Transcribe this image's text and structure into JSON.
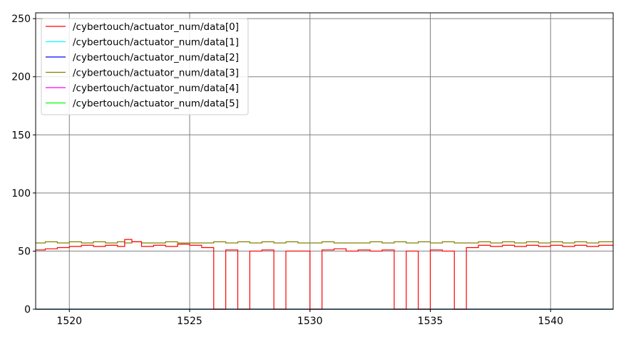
{
  "chart_data": {
    "type": "line",
    "xlim": [
      1518.6,
      1542.6
    ],
    "ylim": [
      0,
      255
    ],
    "xticks": [
      1520,
      1525,
      1530,
      1535,
      1540
    ],
    "yticks": [
      0,
      50,
      100,
      150,
      200,
      250
    ],
    "grid": true,
    "legend_position": "top-left",
    "x": [
      1518.6,
      1519.0,
      1519.5,
      1520.0,
      1520.5,
      1521.0,
      1521.5,
      1522.0,
      1522.3,
      1522.6,
      1523.0,
      1523.5,
      1524.0,
      1524.5,
      1525.0,
      1525.5,
      1526.0,
      1526.5,
      1527.0,
      1527.5,
      1528.0,
      1528.5,
      1529.0,
      1529.5,
      1530.0,
      1530.5,
      1531.0,
      1531.5,
      1532.0,
      1532.5,
      1533.0,
      1533.5,
      1534.0,
      1534.5,
      1535.0,
      1535.5,
      1536.0,
      1536.5,
      1537.0,
      1537.5,
      1538.0,
      1538.5,
      1539.0,
      1539.5,
      1540.0,
      1540.5,
      1541.0,
      1541.5,
      1542.0,
      1542.6
    ],
    "series": [
      {
        "name": "/cybertouch/actuator_num/data[0]",
        "color": "#ff0000",
        "values": [
          51,
          52,
          53,
          54,
          55,
          54,
          55,
          54,
          60,
          58,
          54,
          55,
          54,
          56,
          55,
          53,
          0,
          51,
          0,
          50,
          51,
          0,
          50,
          50,
          0,
          51,
          52,
          50,
          51,
          50,
          51,
          0,
          50,
          0,
          51,
          50,
          0,
          53,
          55,
          54,
          55,
          54,
          55,
          54,
          55,
          54,
          55,
          54,
          55,
          54
        ]
      },
      {
        "name": "/cybertouch/actuator_num/data[1]",
        "color": "#00ffff",
        "values": [
          0,
          0,
          0,
          0,
          0,
          0,
          0,
          0,
          0,
          0,
          0,
          0,
          0,
          0,
          0,
          0,
          0,
          0,
          0,
          0,
          0,
          0,
          0,
          0,
          0,
          0,
          0,
          0,
          0,
          0,
          0,
          0,
          0,
          0,
          0,
          0,
          0,
          0,
          0,
          0,
          0,
          0,
          0,
          0,
          0,
          0,
          0,
          0,
          0,
          0
        ]
      },
      {
        "name": "/cybertouch/actuator_num/data[2]",
        "color": "#0000ff",
        "values": [
          0,
          0,
          0,
          0,
          0,
          0,
          0,
          0,
          0,
          0,
          0,
          0,
          0,
          0,
          0,
          0,
          0,
          0,
          0,
          0,
          0,
          0,
          0,
          0,
          0,
          0,
          0,
          0,
          0,
          0,
          0,
          0,
          0,
          0,
          0,
          0,
          0,
          0,
          0,
          0,
          0,
          0,
          0,
          0,
          0,
          0,
          0,
          0,
          0,
          0
        ]
      },
      {
        "name": "/cybertouch/actuator_num/data[3]",
        "color": "#808000",
        "values": [
          57,
          58,
          57,
          58,
          57,
          58,
          57,
          58,
          57,
          58,
          57,
          57,
          58,
          57,
          57,
          57,
          58,
          57,
          58,
          57,
          58,
          57,
          58,
          57,
          57,
          58,
          57,
          57,
          57,
          58,
          57,
          58,
          57,
          58,
          57,
          58,
          57,
          57,
          58,
          57,
          58,
          57,
          58,
          57,
          58,
          57,
          58,
          57,
          58,
          58
        ]
      },
      {
        "name": "/cybertouch/actuator_num/data[4]",
        "color": "#ff00ff",
        "values": [
          0,
          0,
          0,
          0,
          0,
          0,
          0,
          0,
          0,
          0,
          0,
          0,
          0,
          0,
          0,
          0,
          0,
          0,
          0,
          0,
          0,
          0,
          0,
          0,
          0,
          0,
          0,
          0,
          0,
          0,
          0,
          0,
          0,
          0,
          0,
          0,
          0,
          0,
          0,
          0,
          0,
          0,
          0,
          0,
          0,
          0,
          0,
          0,
          0,
          0
        ]
      },
      {
        "name": "/cybertouch/actuator_num/data[5]",
        "color": "#00ff00",
        "values": [
          0,
          0,
          0,
          0,
          0,
          0,
          0,
          0,
          0,
          0,
          0,
          0,
          0,
          0,
          0,
          0,
          0,
          0,
          0,
          0,
          0,
          0,
          0,
          0,
          0,
          0,
          0,
          0,
          0,
          0,
          0,
          0,
          0,
          0,
          0,
          0,
          0,
          0,
          0,
          0,
          0,
          0,
          0,
          0,
          0,
          0,
          0,
          0,
          0,
          0
        ]
      }
    ]
  }
}
